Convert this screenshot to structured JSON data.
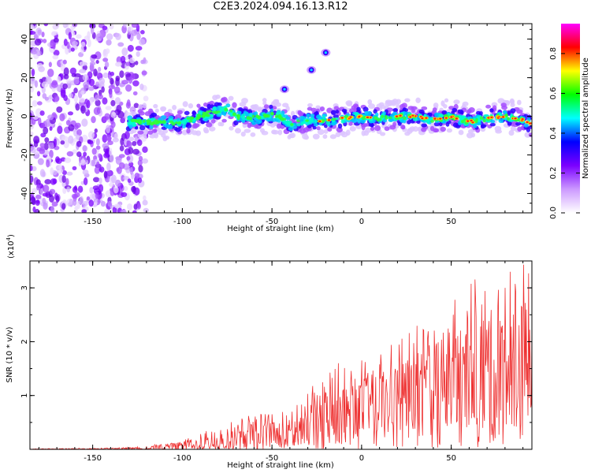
{
  "title": "C2E3.2024.094.16.13.R12",
  "chart_data": [
    {
      "type": "heatmap",
      "xlabel": "Height of straight line (km)",
      "ylabel": "Frequency (Hz)",
      "xlim": [
        -185,
        95
      ],
      "ylim": [
        -50,
        48
      ],
      "x_ticks": [
        -150,
        -100,
        -50,
        0,
        50
      ],
      "y_ticks": [
        -40,
        -20,
        0,
        20,
        40
      ],
      "colorbar": {
        "label": "Normalized spectral amplitude",
        "range": [
          0,
          0.95
        ],
        "ticks": [
          "0.0",
          "0.2",
          "0.4",
          "0.6",
          "0.8"
        ],
        "colors": [
          "#ffffff",
          "#cc99ff",
          "#7b00ff",
          "#0000ff",
          "#00ffff",
          "#00ff00",
          "#ffff00",
          "#ff0000",
          "#ff00ff"
        ]
      },
      "ridge": {
        "x": [
          -130,
          -120,
          -110,
          -100,
          -90,
          -80,
          -75,
          -70,
          -60,
          -50,
          -45,
          -40,
          -35,
          -30,
          -20,
          -10,
          0,
          10,
          20,
          30,
          40,
          50,
          60,
          70,
          80,
          90,
          95
        ],
        "y": [
          -3,
          -3,
          -3,
          -3,
          0,
          3,
          4,
          0,
          -1,
          1,
          0,
          -4,
          -3,
          -2,
          -2,
          -1,
          0,
          -1,
          0,
          0,
          -2,
          0,
          -3,
          -1,
          0,
          -2,
          -4
        ]
      },
      "features": [
        {
          "x": -43,
          "y": 14
        },
        {
          "x": -28,
          "y": 24
        },
        {
          "x": -20,
          "y": 33
        }
      ],
      "noise_region_x": [
        -185,
        -128
      ]
    },
    {
      "type": "line",
      "xlabel": "Height of straight line (km)",
      "ylabel": "SNR (10 * v/v)",
      "multiplier": "(x10",
      "multiplier_exp": "4",
      "multiplier_close": ")",
      "xlim": [
        -185,
        95
      ],
      "ylim": [
        0,
        3.5
      ],
      "x_ticks": [
        -150,
        -100,
        -50,
        0,
        50
      ],
      "y_ticks": [
        1,
        2,
        3
      ],
      "color": "#ee3030",
      "envelope": {
        "x": [
          -185,
          -150,
          -130,
          -120,
          -100,
          -80,
          -60,
          -40,
          -30,
          -20,
          -10,
          0,
          10,
          20,
          30,
          40,
          50,
          60,
          70,
          80,
          90,
          95
        ],
        "y": [
          0.01,
          0.02,
          0.03,
          0.05,
          0.15,
          0.35,
          0.55,
          0.6,
          0.9,
          1.3,
          1.35,
          1.4,
          1.5,
          1.7,
          1.9,
          2.1,
          2.3,
          2.6,
          2.7,
          2.8,
          2.9,
          3.0
        ]
      },
      "mean": {
        "x": [
          -185,
          -150,
          -130,
          -120,
          -100,
          -80,
          -60,
          -40,
          -30,
          -20,
          -10,
          0,
          10,
          20,
          30,
          40,
          50,
          60,
          70,
          80,
          90,
          95
        ],
        "y": [
          0.005,
          0.01,
          0.015,
          0.02,
          0.06,
          0.15,
          0.25,
          0.3,
          0.45,
          0.6,
          0.7,
          0.8,
          0.9,
          1.0,
          1.1,
          1.2,
          1.3,
          1.45,
          1.5,
          1.55,
          1.6,
          1.6
        ]
      }
    }
  ]
}
